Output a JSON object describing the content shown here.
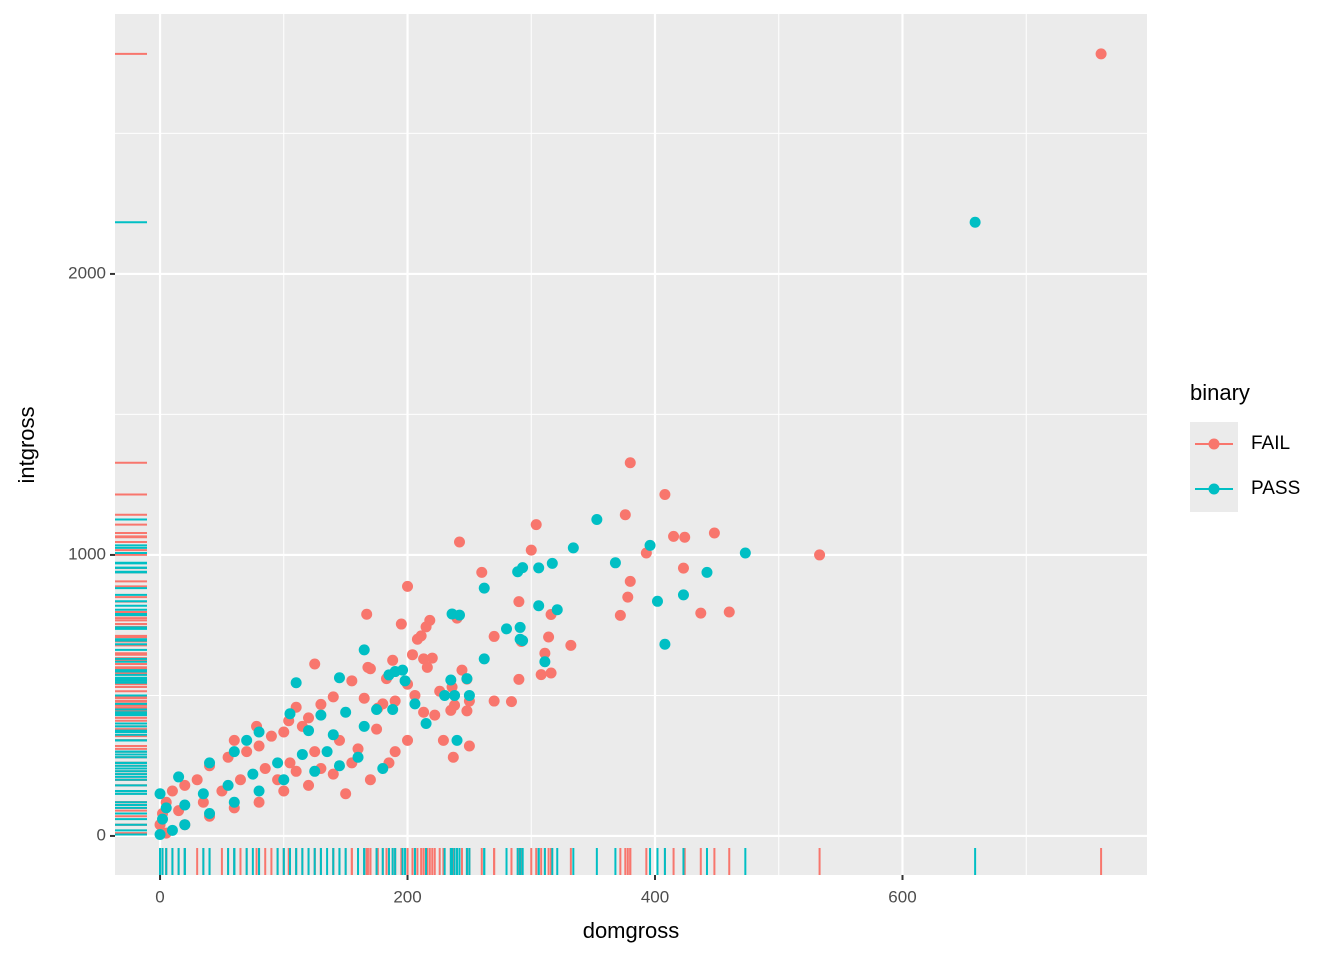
{
  "chart_data": {
    "type": "scatter",
    "x_label": "domgross",
    "y_label": "intgross",
    "xlim": [
      -36.4,
      797.6
    ],
    "ylim": [
      -139,
      2925
    ],
    "xticks": [
      0,
      200,
      400,
      600
    ],
    "yticks": [
      0,
      1000,
      2000
    ],
    "grid": true,
    "minor_grid": true,
    "rug": true,
    "legend_title": "binary",
    "legend_position": "right",
    "series": [
      {
        "name": "FAIL",
        "color": "#F8766D",
        "x": [
          760.5,
          533,
          380,
          408,
          376,
          448,
          415,
          424,
          304,
          242,
          300,
          393,
          200,
          260,
          380,
          423,
          290,
          378,
          316,
          372,
          437,
          460,
          167,
          218,
          215,
          211,
          240,
          195,
          208,
          270,
          314,
          332,
          311,
          292,
          308,
          316,
          290,
          284,
          270,
          244,
          248,
          236,
          250,
          248,
          235,
          213,
          220,
          216,
          204,
          188,
          125,
          168,
          170,
          183,
          200,
          206,
          226,
          238,
          213,
          222,
          190,
          180,
          176,
          165,
          155,
          140,
          130,
          110,
          104,
          120,
          115,
          78,
          100,
          90,
          60,
          80,
          70,
          55,
          40,
          30,
          20,
          10,
          5,
          2,
          0,
          15,
          35,
          50,
          65,
          85,
          105,
          125,
          145,
          160,
          175,
          190,
          200,
          237,
          155,
          140,
          120,
          100,
          80,
          60,
          40,
          20,
          5,
          150,
          130,
          110,
          95,
          170,
          250,
          229,
          185
        ],
        "y": [
          2783,
          1000,
          1328,
          1215,
          1143,
          1078,
          1066,
          1063,
          1108,
          1046,
          1017,
          1007,
          888,
          938,
          906,
          953,
          834,
          850,
          788,
          785,
          793,
          797,
          789,
          767,
          744,
          712,
          775,
          754,
          700,
          710,
          708,
          678,
          650,
          692,
          574,
          580,
          557,
          478,
          480,
          590,
          558,
          530,
          480,
          445,
          447,
          630,
          633,
          600,
          645,
          625,
          612,
          600,
          595,
          560,
          540,
          500,
          515,
          465,
          440,
          430,
          480,
          470,
          455,
          490,
          552,
          495,
          468,
          458,
          410,
          420,
          390,
          390,
          370,
          355,
          340,
          320,
          300,
          280,
          250,
          200,
          180,
          160,
          120,
          80,
          40,
          90,
          120,
          160,
          200,
          240,
          260,
          300,
          340,
          310,
          380,
          300,
          340,
          280,
          260,
          220,
          180,
          160,
          120,
          100,
          70,
          40,
          10,
          150,
          240,
          230,
          200,
          200,
          320,
          340,
          260
        ]
      },
      {
        "name": "PASS",
        "color": "#00BFC4",
        "x": [
          658.7,
          353,
          334,
          368,
          396,
          473,
          306,
          317,
          293,
          289,
          262,
          242,
          236,
          402,
          423,
          442,
          306,
          321,
          280,
          291,
          291,
          311,
          293,
          408,
          165,
          262,
          248,
          235,
          190,
          196,
          185,
          198,
          110,
          145,
          230,
          238,
          250,
          206,
          188,
          175,
          150,
          130,
          105,
          80,
          120,
          165,
          140,
          70,
          60,
          40,
          15,
          0,
          5,
          2,
          20,
          35,
          55,
          75,
          95,
          115,
          135,
          160,
          180,
          240,
          215,
          100,
          80,
          60,
          40,
          20,
          10,
          0,
          125,
          145
        ],
        "y": [
          2184,
          1126,
          1025,
          972,
          1034,
          1007,
          954,
          970,
          955,
          940,
          882,
          786,
          790,
          835,
          858,
          938,
          819,
          805,
          737,
          742,
          700,
          620,
          695,
          682,
          662,
          630,
          560,
          555,
          585,
          590,
          573,
          552,
          545,
          563,
          500,
          500,
          500,
          470,
          450,
          450,
          440,
          430,
          435,
          370,
          375,
          390,
          360,
          340,
          300,
          260,
          210,
          150,
          100,
          60,
          110,
          150,
          180,
          220,
          260,
          290,
          300,
          280,
          240,
          340,
          400,
          200,
          160,
          120,
          80,
          40,
          20,
          5,
          230,
          250
        ]
      }
    ]
  }
}
